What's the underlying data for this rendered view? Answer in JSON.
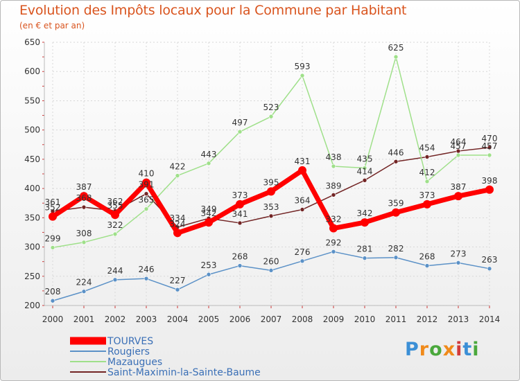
{
  "title": "Evolution des Impôts locaux pour la Commune par Habitant",
  "subtitle": "(en € et par an)",
  "logo_letters": [
    "P",
    "r",
    "o",
    "x",
    "i",
    "t",
    "i"
  ],
  "logo_colors": [
    "#3b8fd6",
    "#f08a1a",
    "#4aa83c",
    "#f08a1a",
    "#d23b3b",
    "#3b8fd6",
    "#4aa83c"
  ],
  "chart_data": {
    "type": "line",
    "x": [
      "2000",
      "2001",
      "2002",
      "2003",
      "2004",
      "2005",
      "2006",
      "2007",
      "2008",
      "2009",
      "2010",
      "2011",
      "2012",
      "2013",
      "2014"
    ],
    "ylim": [
      200,
      650
    ],
    "yticks": [
      200,
      250,
      300,
      350,
      400,
      450,
      500,
      550,
      600,
      650
    ],
    "grid": true,
    "legend": "bottom-left",
    "series": [
      {
        "name": "Saint-Maximin-la-Sainte-Baume",
        "color": "#722424",
        "values": [
          361,
          368,
          362,
          391,
          334,
          349,
          341,
          353,
          364,
          389,
          414,
          446,
          454,
          464,
          470
        ]
      },
      {
        "name": "Mazaugues",
        "color": "#9fe08a",
        "values": [
          299,
          308,
          322,
          365,
          422,
          443,
          497,
          523,
          593,
          438,
          435,
          625,
          412,
          457,
          457
        ]
      },
      {
        "name": "Rougiers",
        "color": "#5b91c7",
        "values": [
          208,
          224,
          244,
          246,
          227,
          253,
          268,
          260,
          276,
          292,
          281,
          282,
          268,
          273,
          263
        ]
      },
      {
        "name": "TOURVES",
        "color": "#ff0000",
        "values": [
          352,
          387,
          355,
          410,
          324,
          342,
          373,
          395,
          431,
          332,
          342,
          359,
          373,
          387,
          398
        ]
      }
    ],
    "legend_order": [
      "TOURVES",
      "Rougiers",
      "Mazaugues",
      "Saint-Maximin-la-Sainte-Baume"
    ]
  }
}
